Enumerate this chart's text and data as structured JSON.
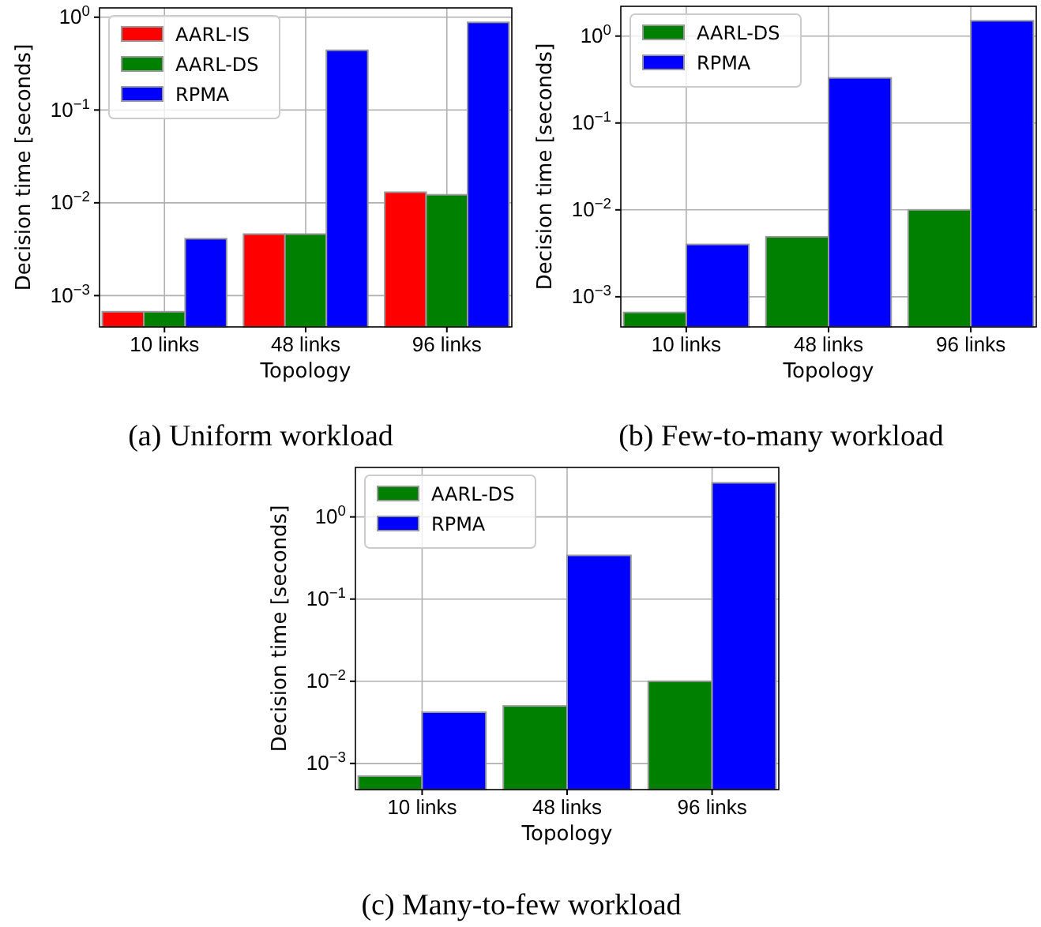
{
  "chart_data": [
    {
      "type": "bar",
      "xlabel": "Topology",
      "ylabel": "Decision time [seconds]",
      "categories": [
        "10 links",
        "48 links",
        "96 links"
      ],
      "log": "y",
      "ylim": [
        0.00046,
        1.26
      ],
      "yticks": [
        {
          "value": 0.001,
          "label": "10$^{−3}$"
        },
        {
          "value": 0.01,
          "label": "10$^{−2}$"
        },
        {
          "value": 0.1,
          "label": "10$^{−1}$"
        },
        {
          "value": 1,
          "label": "10$^{0}$"
        }
      ],
      "grid": true,
      "legend": "top left",
      "annotations": [
        "(a) Uniform workload"
      ],
      "series": [
        {
          "name": "AARL-IS",
          "color": "#ff0000",
          "values": [
            0.00067,
            0.0046,
            0.013
          ]
        },
        {
          "name": "AARL-DS",
          "color": "#008000",
          "values": [
            0.00067,
            0.0046,
            0.0122
          ]
        },
        {
          "name": "RPMA",
          "color": "#0000ff",
          "values": [
            0.0041,
            0.44,
            0.88
          ]
        }
      ]
    },
    {
      "type": "bar",
      "xlabel": "Topology",
      "ylabel": "Decision time [seconds]",
      "categories": [
        "10 links",
        "48 links",
        "96 links"
      ],
      "log": "y",
      "ylim": [
        0.00045,
        2.2
      ],
      "yticks": [
        {
          "value": 0.001,
          "label": "10$^{−3}$"
        },
        {
          "value": 0.01,
          "label": "10$^{−2}$"
        },
        {
          "value": 0.1,
          "label": "10$^{−1}$"
        },
        {
          "value": 1,
          "label": "10$^{0}$"
        }
      ],
      "grid": true,
      "legend": "top left",
      "annotations": [
        "(b) Few-to-many workload"
      ],
      "series": [
        {
          "name": "AARL-DS",
          "color": "#008000",
          "values": [
            0.00066,
            0.0049,
            0.01
          ]
        },
        {
          "name": "RPMA",
          "color": "#0000ff",
          "values": [
            0.004,
            0.33,
            1.5
          ]
        }
      ]
    },
    {
      "type": "bar",
      "xlabel": "Topology",
      "ylabel": "Decision time [seconds]",
      "categories": [
        "10 links",
        "48 links",
        "96 links"
      ],
      "log": "y",
      "ylim": [
        0.00048,
        4.0
      ],
      "yticks": [
        {
          "value": 0.001,
          "label": "10$^{−3}$"
        },
        {
          "value": 0.01,
          "label": "10$^{−2}$"
        },
        {
          "value": 0.1,
          "label": "10$^{−1}$"
        },
        {
          "value": 1,
          "label": "10$^{0}$"
        }
      ],
      "grid": true,
      "legend": "top left",
      "annotations": [
        "(c) Many-to-few workload"
      ],
      "series": [
        {
          "name": "AARL-DS",
          "color": "#008000",
          "values": [
            0.0007,
            0.005,
            0.01
          ]
        },
        {
          "name": "RPMA",
          "color": "#0000ff",
          "values": [
            0.0042,
            0.34,
            2.6
          ]
        }
      ]
    }
  ]
}
